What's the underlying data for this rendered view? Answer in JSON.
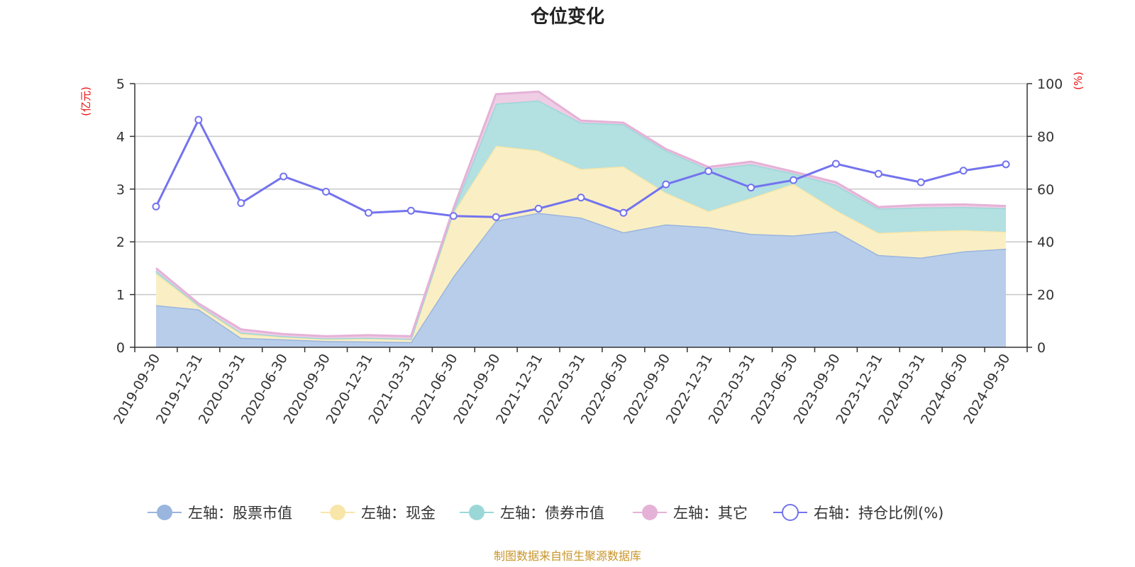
{
  "chart_data": {
    "type": "area",
    "title": "仓位变化",
    "categories": [
      "2019-09-30",
      "2019-12-31",
      "2020-03-31",
      "2020-06-30",
      "2020-09-30",
      "2020-12-31",
      "2021-03-31",
      "2021-06-30",
      "2021-09-30",
      "2021-12-31",
      "2022-03-31",
      "2022-06-30",
      "2022-09-30",
      "2022-12-31",
      "2023-03-31",
      "2023-06-30",
      "2023-09-30",
      "2023-12-31",
      "2024-03-31",
      "2024-06-30",
      "2024-09-30"
    ],
    "left_axis": {
      "unit_label": "(亿元)",
      "ylim": [
        0,
        5
      ],
      "ticks": [
        "0",
        "1",
        "2",
        "3",
        "4",
        "5"
      ]
    },
    "right_axis": {
      "unit_label": "(%)",
      "ylim": [
        0,
        100
      ],
      "ticks": [
        "0",
        "20",
        "40",
        "60",
        "80",
        "100"
      ]
    },
    "series": [
      {
        "name": "左轴：股票市值",
        "axis": "left",
        "stacked": true,
        "line_color": "#9ab5de",
        "fill_color": "#b8cdea",
        "values": [
          0.8,
          0.72,
          0.18,
          0.15,
          0.12,
          0.11,
          0.1,
          1.35,
          2.4,
          2.55,
          2.46,
          2.18,
          2.33,
          2.28,
          2.15,
          2.12,
          2.2,
          1.75,
          1.7,
          1.82,
          1.87
        ]
      },
      {
        "name": "左轴：现金",
        "axis": "left",
        "stacked": true,
        "line_color": "#f8e6a8",
        "fill_color": "#faefc4",
        "values": [
          0.6,
          0.06,
          0.08,
          0.05,
          0.04,
          0.06,
          0.05,
          1.2,
          1.42,
          1.18,
          0.92,
          1.25,
          0.6,
          0.3,
          0.68,
          0.98,
          0.4,
          0.42,
          0.5,
          0.4,
          0.32
        ]
      },
      {
        "name": "左轴：债券市值",
        "axis": "left",
        "stacked": true,
        "line_color": "#9cd7d8",
        "fill_color": "#b3e0e1",
        "values": [
          0.05,
          0.02,
          0.02,
          0.01,
          0.01,
          0.01,
          0.01,
          0.04,
          0.8,
          0.95,
          0.88,
          0.8,
          0.8,
          0.8,
          0.64,
          0.2,
          0.48,
          0.46,
          0.45,
          0.44,
          0.45
        ]
      },
      {
        "name": "左轴：其它",
        "axis": "left",
        "stacked": true,
        "line_color": "#e5b2d7",
        "fill_color": "#efcde5",
        "values": [
          0.05,
          0.03,
          0.06,
          0.04,
          0.04,
          0.05,
          0.05,
          0.05,
          0.18,
          0.17,
          0.04,
          0.03,
          0.03,
          0.04,
          0.05,
          0.03,
          0.05,
          0.03,
          0.05,
          0.05,
          0.04
        ]
      },
      {
        "name": "右轴：持仓比例(%)",
        "axis": "right",
        "stacked": false,
        "line_color": "#7373ee",
        "values": [
          53.4,
          86.3,
          54.7,
          64.8,
          59.0,
          51.0,
          51.8,
          49.8,
          49.4,
          52.6,
          56.8,
          51.0,
          61.8,
          66.8,
          60.6,
          63.4,
          69.6,
          65.8,
          62.6,
          67.0,
          69.4
        ]
      }
    ],
    "legend_position": "bottom-center",
    "grid": true
  },
  "footer": {
    "source": "制图数据来自恒生聚源数据库"
  }
}
